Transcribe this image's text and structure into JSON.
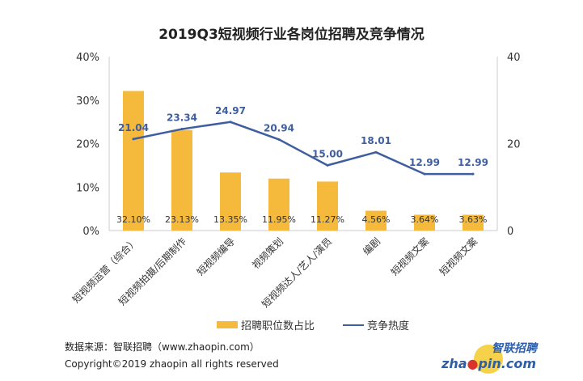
{
  "chart_data": {
    "type": "bar+line",
    "title": "2019Q3短视频行业各岗位招聘及竞争情况",
    "categories": [
      "短视频运营（综合）",
      "短视频拍摄/后期制作",
      "短视频编导",
      "视频策划",
      "短视频达人/艺人/演员",
      "编剧",
      "短视频文案",
      "短视频文案"
    ],
    "series": [
      {
        "name": "招聘职位数占比",
        "type": "bar",
        "axis": "left",
        "values": [
          32.1,
          23.13,
          13.35,
          11.95,
          11.27,
          4.56,
          3.64,
          3.63
        ],
        "labels": [
          "32.10%",
          "23.13%",
          "13.35%",
          "11.95%",
          "11.27%",
          "4.56%",
          "3.64%",
          "3.63%"
        ],
        "color": "#F5B93C"
      },
      {
        "name": "竞争热度",
        "type": "line",
        "axis": "right",
        "values": [
          21.04,
          23.34,
          24.97,
          20.94,
          15.0,
          18.01,
          12.99,
          12.99
        ],
        "labels": [
          "21.04",
          "23.34",
          "24.97",
          "20.94",
          "15.00",
          "18.01",
          "12.99",
          "12.99"
        ],
        "color": "#3F5E9E"
      }
    ],
    "y_left": {
      "range": [
        0,
        40
      ],
      "ticks": [
        "0%",
        "10%",
        "20%",
        "30%",
        "40%"
      ]
    },
    "y_right": {
      "range": [
        0,
        40
      ],
      "ticks": [
        "0",
        "20",
        "40"
      ]
    },
    "grid": false,
    "legend_placement": "bottom"
  },
  "footer": {
    "source": "数据来源：智联招聘（www.zhaopin.com）",
    "copyright": "Copyright©2019 zhaopin all rights reserved",
    "logo_cn": "智联招聘",
    "logo_en": "zhaopin.com"
  }
}
